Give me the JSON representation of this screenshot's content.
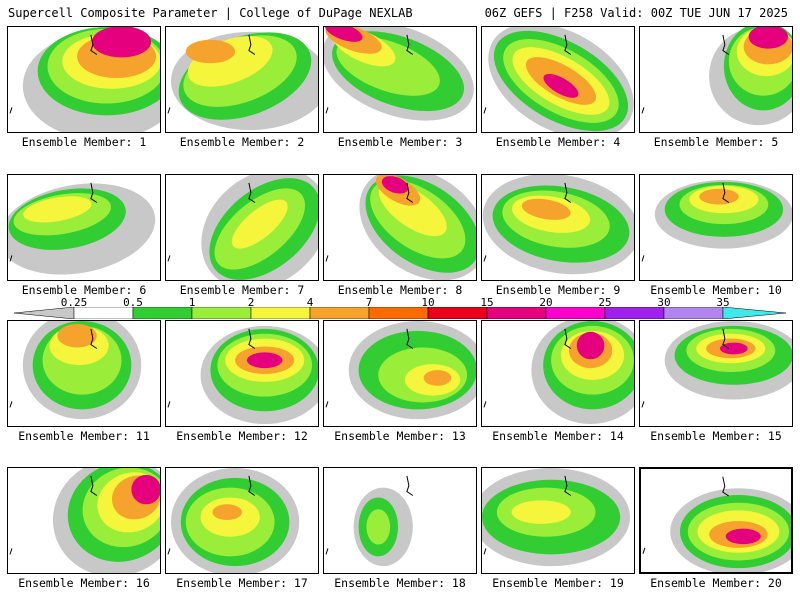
{
  "header": {
    "left_title": "Supercell Composite Parameter | College of DuPage NEXLAB",
    "right_title": "06Z GEFS | F258 Valid: 00Z TUE JUN 17 2025"
  },
  "colorbar": {
    "levels": [
      "0.25",
      "0.5",
      "1",
      "2",
      "4",
      "7",
      "10",
      "15",
      "20",
      "25",
      "30",
      "35"
    ],
    "colors": [
      "#c8c8c8",
      "#ffffff",
      "#32cd32",
      "#9aee3a",
      "#f5f53c",
      "#f5a32c",
      "#ff6a00",
      "#e8001c",
      "#e5007e",
      "#ff00cc",
      "#a020f0",
      "#b284f0",
      "#40e8e8"
    ]
  },
  "panels": [
    {
      "label": "Ensemble Member: 1"
    },
    {
      "label": "Ensemble Member: 2"
    },
    {
      "label": "Ensemble Member: 3"
    },
    {
      "label": "Ensemble Member: 4"
    },
    {
      "label": "Ensemble Member: 5"
    },
    {
      "label": "Ensemble Member: 6"
    },
    {
      "label": "Ensemble Member: 7"
    },
    {
      "label": "Ensemble Member: 8"
    },
    {
      "label": "Ensemble Member: 9"
    },
    {
      "label": "Ensemble Member: 10"
    },
    {
      "label": "Ensemble Member: 11"
    },
    {
      "label": "Ensemble Member: 12"
    },
    {
      "label": "Ensemble Member: 13"
    },
    {
      "label": "Ensemble Member: 14"
    },
    {
      "label": "Ensemble Member: 15"
    },
    {
      "label": "Ensemble Member: 16"
    },
    {
      "label": "Ensemble Member: 17"
    },
    {
      "label": "Ensemble Member: 18"
    },
    {
      "label": "Ensemble Member: 19"
    },
    {
      "label": "Ensemble Member: 20"
    }
  ]
}
